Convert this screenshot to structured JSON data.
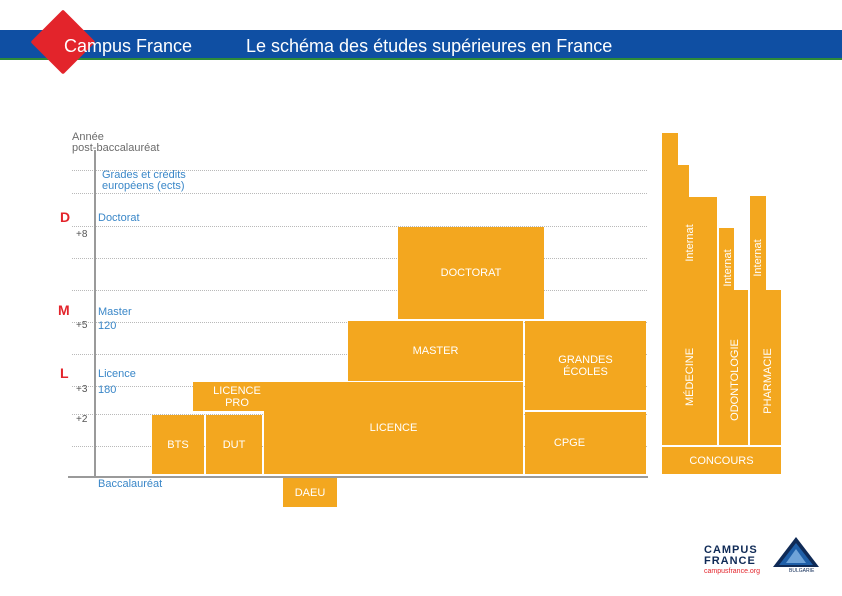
{
  "header": {
    "brand": "Campus France",
    "title": "Le schéma des études supérieures en France",
    "bar_color": "#0f4fa3",
    "logo_color": "#e3242b"
  },
  "diagram": {
    "block_color": "#f3a71f",
    "axis": {
      "year_label_line1": "Année",
      "year_label_line2": "post-baccalauréat",
      "grades_line1": "Grades et crédits",
      "grades_line2": "européens (ects)",
      "doctorat_letter": "D",
      "doctorat_label": "Doctorat",
      "tick_8": "+8",
      "master_letter": "M",
      "master_label": "Master",
      "tick_5": "+5",
      "master_credits": "120",
      "licence_letter": "L",
      "licence_label": "Licence",
      "tick_3": "+3",
      "licence_credits": "180",
      "tick_2": "+2",
      "bac_label": "Baccalauréat"
    },
    "blocks": {
      "doctorat": "DOCTORAT",
      "master": "MASTER",
      "grandes_ecoles_line1": "GRANDES",
      "grandes_ecoles_line2": "ÉCOLES",
      "licence_pro_line1": "LICENCE",
      "licence_pro_line2": "PRO",
      "licence": "LICENCE",
      "cpge": "CPGE",
      "bts": "BTS",
      "dut": "DUT",
      "daeu": "DAEU",
      "concours": "CONCOURS",
      "medecine": "MÉDECINE",
      "odontologie": "ODONTOLOGIE",
      "pharmacie": "PHARMACIE",
      "internat_1": "Internat",
      "internat_2": "Internat",
      "internat_3": "Internat"
    }
  },
  "footer": {
    "word1": "CAMPUS",
    "word2": "FRANCE",
    "url": "campusfrance.org",
    "country": "BULGARIE"
  }
}
